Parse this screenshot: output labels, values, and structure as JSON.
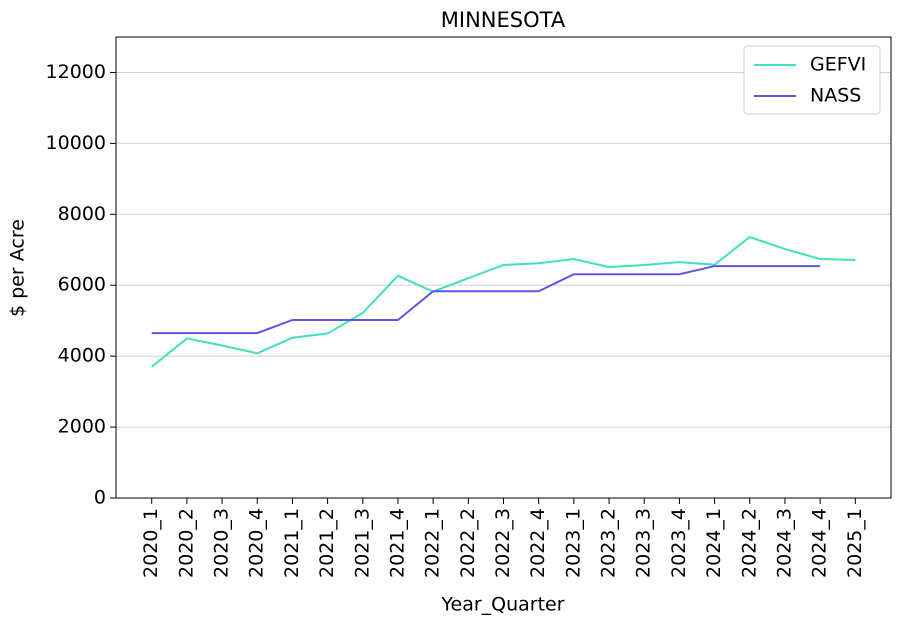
{
  "chart_data": {
    "type": "line",
    "title": "MINNESOTA",
    "x_label": "Year_Quarter",
    "y_label": "$ per Acre",
    "categories": [
      "2020_1",
      "2020_2",
      "2020_3",
      "2020_4",
      "2021_1",
      "2021_2",
      "2021_3",
      "2021_4",
      "2022_1",
      "2022_2",
      "2022_3",
      "2022_4",
      "2023_1",
      "2023_2",
      "2023_3",
      "2023_4",
      "2024_1",
      "2024_2",
      "2024_3",
      "2024_4",
      "2025_1"
    ],
    "series": [
      {
        "name": "GEFVI",
        "color": "#40e0c0",
        "values": [
          3700,
          4500,
          4300,
          4080,
          4520,
          4640,
          5220,
          6270,
          5820,
          6200,
          6570,
          6620,
          6740,
          6510,
          6570,
          6650,
          6580,
          7360,
          7020,
          6740,
          6710
        ]
      },
      {
        "name": "NASS",
        "color": "#6650e6",
        "values": [
          4650,
          4650,
          4650,
          4650,
          5020,
          5020,
          5020,
          5020,
          5830,
          5830,
          5830,
          5830,
          6310,
          6310,
          6310,
          6310,
          6540,
          6540,
          6540,
          6540,
          null
        ]
      }
    ],
    "ylim": [
      0,
      13000
    ],
    "yticks": [
      0,
      2000,
      4000,
      6000,
      8000,
      10000,
      12000
    ],
    "grid": true,
    "legend": "upper right"
  }
}
